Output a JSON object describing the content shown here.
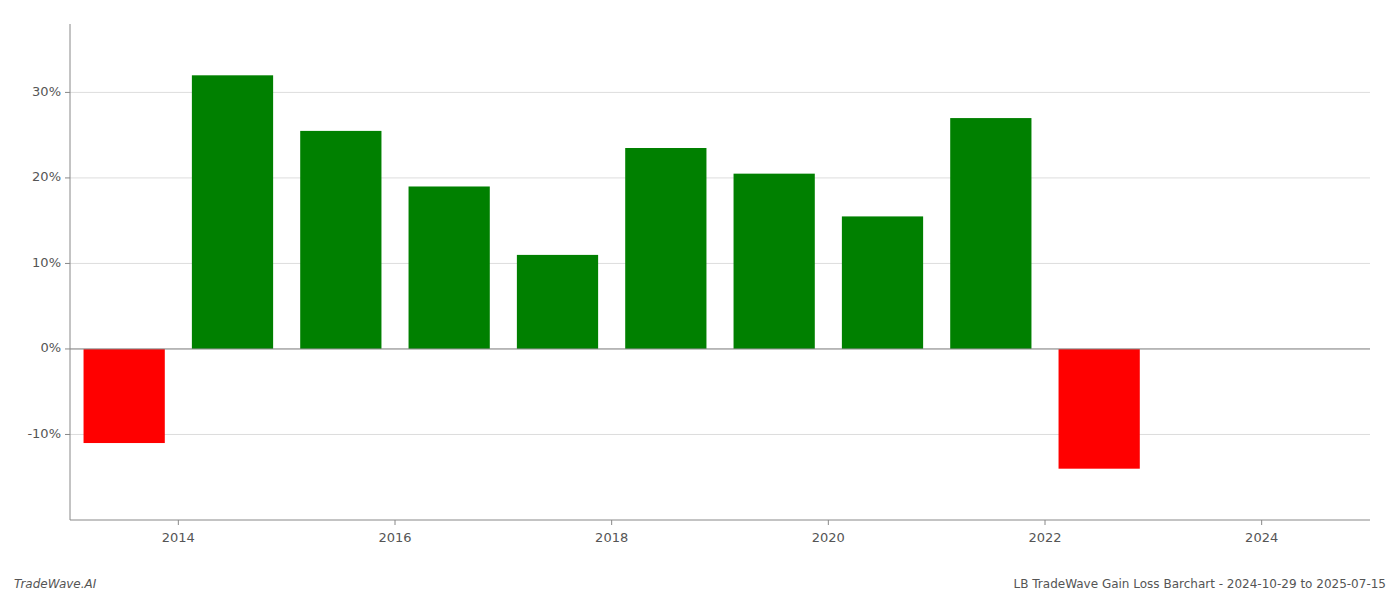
{
  "chart_data": {
    "type": "bar",
    "title": "LB TradeWave Gain Loss Barchart - 2024-10-29 to 2025-07-15",
    "annotations": [
      "TradeWave.AI"
    ],
    "x": [
      2013.5,
      2014.5,
      2015.5,
      2016.5,
      2017.5,
      2018.5,
      2019.5,
      2020.5,
      2021.5,
      2022.5
    ],
    "values": [
      -11.0,
      32.0,
      25.5,
      19.0,
      11.0,
      23.5,
      20.5,
      15.5,
      27.0,
      -14.0
    ],
    "colors": [
      "#ff0000",
      "#008000",
      "#008000",
      "#008000",
      "#008000",
      "#008000",
      "#008000",
      "#008000",
      "#008000",
      "#ff0000"
    ],
    "xlim": [
      2013.0,
      2025.0
    ],
    "xticks": [
      2014,
      2016,
      2018,
      2020,
      2022,
      2024
    ],
    "ylim": [
      -20,
      38
    ],
    "yticks": [
      {
        "value": -10,
        "label": "-10%"
      },
      {
        "value": 0,
        "label": "0%"
      },
      {
        "value": 10,
        "label": "10%"
      },
      {
        "value": 20,
        "label": "20%"
      },
      {
        "value": 30,
        "label": "30%"
      }
    ],
    "grid": true
  }
}
